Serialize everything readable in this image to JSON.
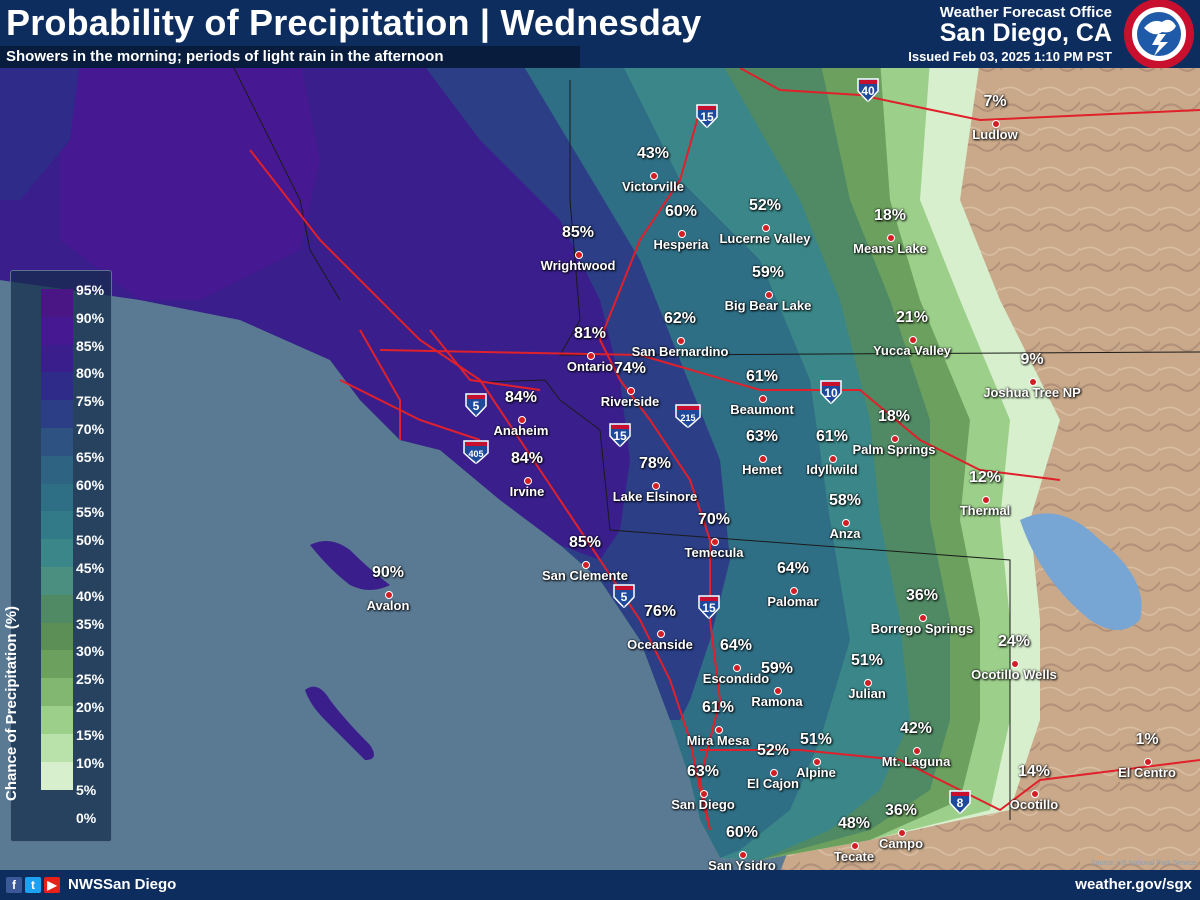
{
  "header": {
    "title": "Probability of Precipitation | Wednesday",
    "subtitle": "Showers in the morning; periods of light rain in the afternoon",
    "office": "Weather Forecast Office",
    "city": "San Diego, CA",
    "issued": "Issued Feb 03, 2025 1:10 PM PST"
  },
  "legend": {
    "title": "Chance of Precipitation (%)",
    "items": [
      {
        "label": "95%",
        "color": "#4a1585"
      },
      {
        "label": "90%",
        "color": "#461891"
      },
      {
        "label": "85%",
        "color": "#3a1f8c"
      },
      {
        "label": "80%",
        "color": "#2e2c88"
      },
      {
        "label": "75%",
        "color": "#2b3e86"
      },
      {
        "label": "70%",
        "color": "#2e5383"
      },
      {
        "label": "65%",
        "color": "#2f6382"
      },
      {
        "label": "60%",
        "color": "#2f6f85"
      },
      {
        "label": "55%",
        "color": "#327a87"
      },
      {
        "label": "50%",
        "color": "#3a8688"
      },
      {
        "label": "45%",
        "color": "#4a8f80"
      },
      {
        "label": "40%",
        "color": "#4f8a64"
      },
      {
        "label": "35%",
        "color": "#5b8f56"
      },
      {
        "label": "30%",
        "color": "#6ba05e"
      },
      {
        "label": "25%",
        "color": "#81b771"
      },
      {
        "label": "20%",
        "color": "#9bcf8a"
      },
      {
        "label": "15%",
        "color": "#b9e2ab"
      },
      {
        "label": "10%",
        "color": "#d7efcd"
      },
      {
        "label": "5%",
        "color": ""
      },
      {
        "label": "0%",
        "color": ""
      }
    ]
  },
  "locations": [
    {
      "name": "Ludlow",
      "pop": "7%"
    },
    {
      "name": "Victorville",
      "pop": "43%"
    },
    {
      "name": "Hesperia",
      "pop": "60%"
    },
    {
      "name": "Lucerne Valley",
      "pop": "52%"
    },
    {
      "name": "Means Lake",
      "pop": "18%"
    },
    {
      "name": "Wrightwood",
      "pop": "85%"
    },
    {
      "name": "Big Bear Lake",
      "pop": "59%"
    },
    {
      "name": "Yucca Valley",
      "pop": "21%"
    },
    {
      "name": "San Bernardino",
      "pop": "62%"
    },
    {
      "name": "Ontario",
      "pop": "81%"
    },
    {
      "name": "Joshua Tree NP",
      "pop": "9%"
    },
    {
      "name": "Riverside",
      "pop": "74%"
    },
    {
      "name": "Beaumont",
      "pop": "61%"
    },
    {
      "name": "Anaheim",
      "pop": "84%"
    },
    {
      "name": "Palm Springs",
      "pop": "18%"
    },
    {
      "name": "Hemet",
      "pop": "63%"
    },
    {
      "name": "Idyllwild",
      "pop": "61%"
    },
    {
      "name": "Irvine",
      "pop": "84%"
    },
    {
      "name": "Lake Elsinore",
      "pop": "78%"
    },
    {
      "name": "Thermal",
      "pop": "12%"
    },
    {
      "name": "Anza",
      "pop": "58%"
    },
    {
      "name": "Temecula",
      "pop": "70%"
    },
    {
      "name": "San Clemente",
      "pop": "85%"
    },
    {
      "name": "Avalon",
      "pop": "90%"
    },
    {
      "name": "Palomar",
      "pop": "64%"
    },
    {
      "name": "Borrego Springs",
      "pop": "36%"
    },
    {
      "name": "Oceanside",
      "pop": "76%"
    },
    {
      "name": "Ocotillo Wells",
      "pop": "24%"
    },
    {
      "name": "Escondido",
      "pop": "64%"
    },
    {
      "name": "Ramona",
      "pop": "59%"
    },
    {
      "name": "Julian",
      "pop": "51%"
    },
    {
      "name": "Mira Mesa",
      "pop": "61%"
    },
    {
      "name": "Mt. Laguna",
      "pop": "42%"
    },
    {
      "name": "El Cajon",
      "pop": "52%"
    },
    {
      "name": "Alpine",
      "pop": "51%"
    },
    {
      "name": "El Centro",
      "pop": "1%"
    },
    {
      "name": "San Diego",
      "pop": "63%"
    },
    {
      "name": "Ocotillo",
      "pop": "14%"
    },
    {
      "name": "Tecate",
      "pop": "48%"
    },
    {
      "name": "Campo",
      "pop": "36%"
    },
    {
      "name": "San Ysidro",
      "pop": "60%"
    }
  ],
  "highways": [
    {
      "number": "15",
      "type": "interstate"
    },
    {
      "number": "40",
      "type": "interstate"
    },
    {
      "number": "5",
      "type": "interstate"
    },
    {
      "number": "405",
      "type": "interstate"
    },
    {
      "number": "15",
      "type": "interstate"
    },
    {
      "number": "215",
      "type": "interstate"
    },
    {
      "number": "10",
      "type": "interstate"
    },
    {
      "number": "5",
      "type": "interstate"
    },
    {
      "number": "15",
      "type": "interstate"
    },
    {
      "number": "8",
      "type": "interstate"
    }
  ],
  "footer": {
    "social_icons": [
      "facebook-icon",
      "twitter-icon",
      "youtube-icon"
    ],
    "handle": "NWSSan Diego",
    "website": "weather.gov/sgx",
    "source": "Source: US National Park Service"
  },
  "colors": {
    "header_bg": "#0d2d5e",
    "ocean": "#5a7a94",
    "desert": "#c9a98a",
    "dot": "#d21f26",
    "road": "#e0202a",
    "shield": "#1f4a9c"
  }
}
